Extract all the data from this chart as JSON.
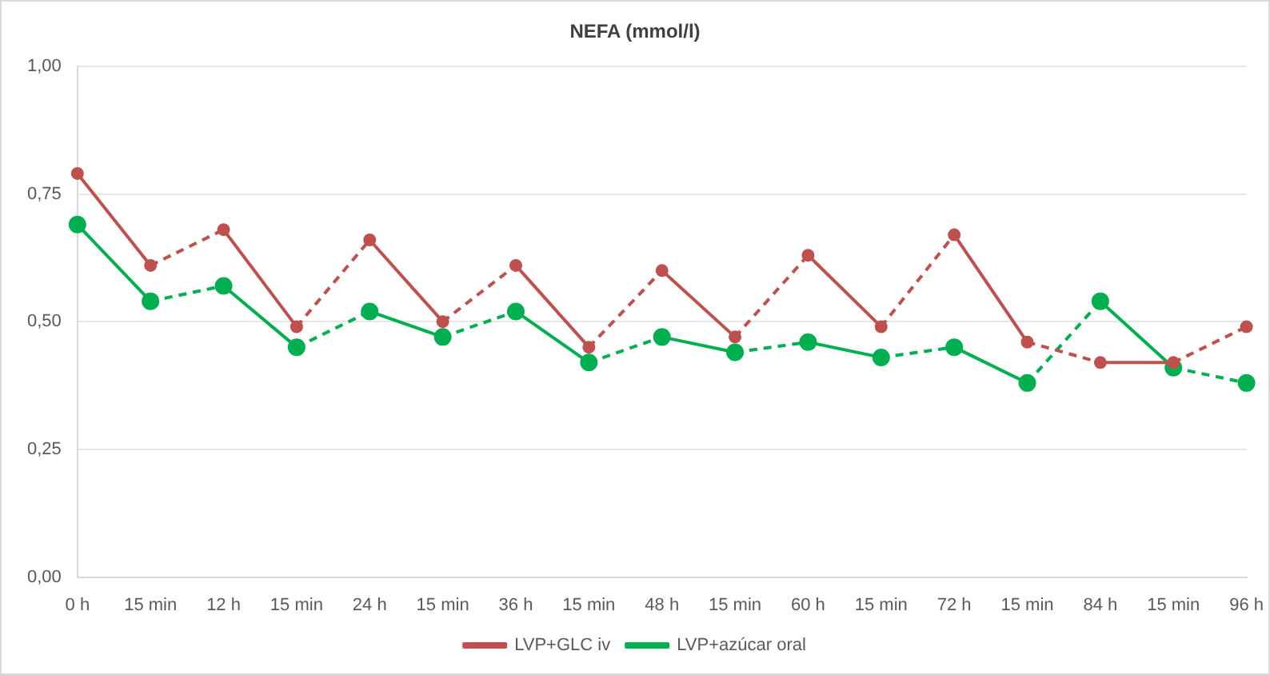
{
  "chart_data": {
    "type": "line",
    "title": "NEFA (mmol/l)",
    "categories": [
      "0 h",
      "15 min",
      "12 h",
      "15 min",
      "24 h",
      "15 min",
      "36 h",
      "15 min",
      "48 h",
      "15 min",
      "60 h",
      "15 min",
      "72 h",
      "15 min",
      "84 h",
      "15 min",
      "96 h"
    ],
    "series": [
      {
        "name": "LVP+GLC iv",
        "color": "#c0504d",
        "marker": "circle",
        "line_style": [
          "solid",
          "dashed",
          "solid",
          "dashed",
          "solid",
          "dashed",
          "solid",
          "dashed",
          "solid",
          "dashed",
          "solid",
          "dashed",
          "solid",
          "dashed",
          "solid",
          "dashed"
        ],
        "values": [
          0.79,
          0.61,
          0.68,
          0.49,
          0.66,
          0.5,
          0.61,
          0.45,
          0.6,
          0.47,
          0.63,
          0.49,
          0.67,
          0.46,
          0.42,
          0.42,
          0.49
        ]
      },
      {
        "name": "LVP+azúcar oral",
        "color": "#00b050",
        "marker": "circle",
        "line_style": [
          "solid",
          "dashed",
          "solid",
          "dashed",
          "solid",
          "dashed",
          "solid",
          "dashed",
          "solid",
          "dashed",
          "solid",
          "dashed",
          "solid",
          "dashed",
          "solid",
          "dashed"
        ],
        "values": [
          0.69,
          0.54,
          0.57,
          0.45,
          0.52,
          0.47,
          0.52,
          0.42,
          0.47,
          0.44,
          0.46,
          0.43,
          0.45,
          0.38,
          0.54,
          0.41,
          0.38
        ]
      }
    ],
    "ylim": [
      0,
      1
    ],
    "yticks": [
      {
        "value": 0,
        "label": "0,00"
      },
      {
        "value": 0.25,
        "label": "0,25"
      },
      {
        "value": 0.5,
        "label": "0,50"
      },
      {
        "value": 0.75,
        "label": "0,75"
      },
      {
        "value": 1,
        "label": "1,00"
      }
    ],
    "grid": "y",
    "legend": "bottom"
  }
}
